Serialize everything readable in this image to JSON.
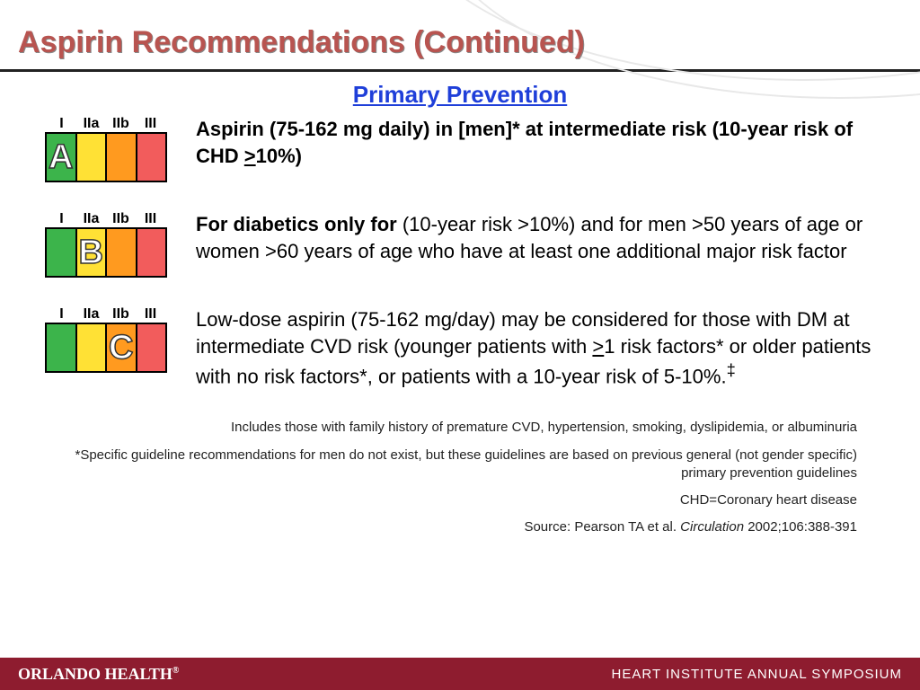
{
  "title": "Aspirin Recommendations (Continued)",
  "subtitle": "Primary Prevention",
  "grade_labels": [
    "I",
    "IIa",
    "IIb",
    "III"
  ],
  "swatch_colors": [
    "#3cb44b",
    "#ffe135",
    "#ff9a1f",
    "#f25c5c"
  ],
  "recs": [
    {
      "letter": "A",
      "letter_col": 0,
      "text_bold": "Aspirin (75-162 mg daily) in [men]* at intermediate risk (10-year risk of CHD ",
      "text_tail": "10%)",
      "ge": ">"
    },
    {
      "letter": "B",
      "letter_col": 1,
      "text_bold": "For diabetics only for",
      "text_rest": " (10-year risk >10%) and for men >50 years of age or women >60 years of age who have at least one additional major risk factor"
    },
    {
      "letter": "C",
      "letter_col": 2,
      "text_a": "Low-dose aspirin (75-162 mg/day) may be considered for those with DM at intermediate CVD risk (younger patients with ",
      "ge": ">",
      "text_b": "1 risk factors* or older patients with no risk factors*, or patients with a 10-year risk of 5-10%.",
      "dagger": "‡"
    }
  ],
  "footnotes": {
    "f1": "Includes those with family history of premature CVD, hypertension, smoking, dyslipidemia, or albuminuria",
    "f2": "*Specific guideline recommendations for men do not exist, but these guidelines are based on previous general (not gender specific) primary prevention guidelines",
    "f3": "CHD=Coronary heart disease",
    "src_a": "Source: Pearson TA et al. ",
    "src_i": "Circulation",
    "src_b": " 2002;106:388-391"
  },
  "footer": {
    "brand": "ORLANDO HEALTH",
    "reg": "®",
    "event": "HEART INSTITUTE ANNUAL SYMPOSIUM"
  }
}
